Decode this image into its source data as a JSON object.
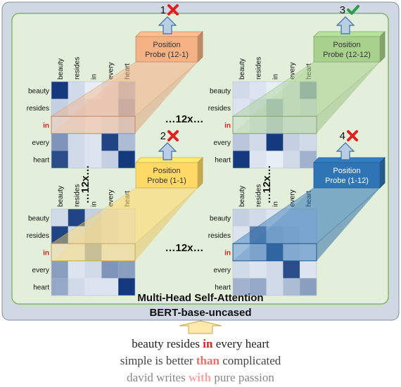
{
  "bert_label": "BERT-base-uncased",
  "mhsa_label": "Multi-Head Self-Attention",
  "tokens": [
    "beauty",
    "resides",
    "in",
    "every",
    "heart"
  ],
  "highlight_token": "in",
  "repeat_label": "…12x…",
  "colors": {
    "outer_box": "#d0d8e4",
    "inner_box": "#e3efda",
    "inner_border": "#70ad47",
    "highlight_text": "#e02020",
    "cross": "#e02020",
    "check": "#2e9c44",
    "arrow_fill": "#b9cde5",
    "arrow_stroke": "#3a6ea5",
    "input_arrow_fill": "#fde9a9",
    "input_arrow_stroke": "#c9a44a"
  },
  "panels": [
    {
      "id": "tl",
      "probe_title": "Position",
      "probe_sub": "Probe (12-1)",
      "probe_color": "#f4b183",
      "probe_text_color": "#333333",
      "marker_num": "1",
      "marker": "cross",
      "heatmap": [
        [
          0.95,
          0.15,
          0.05,
          0.1,
          0.3
        ],
        [
          0.2,
          0.15,
          0.1,
          0.1,
          0.4
        ],
        [
          0.1,
          0.1,
          0.05,
          0.1,
          0.2
        ],
        [
          0.5,
          0.15,
          0.1,
          0.9,
          0.3
        ],
        [
          0.85,
          0.15,
          0.1,
          0.2,
          0.95
        ]
      ]
    },
    {
      "id": "tr",
      "probe_title": "Position",
      "probe_sub": "Probe (12-12)",
      "probe_color": "#a9d18e",
      "probe_text_color": "#333333",
      "marker_num": "3",
      "marker": "check",
      "heatmap": [
        [
          0.15,
          0.1,
          0.05,
          0.1,
          0.5
        ],
        [
          0.1,
          0.15,
          0.35,
          0.1,
          0.15
        ],
        [
          0.05,
          0.1,
          0.25,
          0.1,
          0.1
        ],
        [
          0.25,
          0.15,
          0.95,
          0.2,
          0.15
        ],
        [
          0.95,
          0.1,
          0.05,
          0.15,
          0.35
        ]
      ]
    },
    {
      "id": "bl",
      "probe_title": "Position",
      "probe_sub": "Probe (1-1)",
      "probe_color": "#ffd966",
      "probe_text_color": "#333333",
      "marker_num": "2",
      "marker": "cross",
      "heatmap": [
        [
          0.15,
          0.9,
          0.2,
          0.15,
          0.1
        ],
        [
          0.9,
          0.15,
          0.2,
          0.15,
          0.1
        ],
        [
          0.1,
          0.1,
          0.4,
          0.1,
          0.1
        ],
        [
          0.45,
          0.1,
          0.15,
          0.5,
          0.45
        ],
        [
          0.4,
          0.15,
          0.1,
          0.1,
          0.95
        ]
      ]
    },
    {
      "id": "br",
      "probe_title": "Position",
      "probe_sub": "Probe (1-12)",
      "probe_color": "#2e75b6",
      "probe_text_color": "#ffffff",
      "marker_num": "4",
      "marker": "cross",
      "heatmap": [
        [
          0.2,
          0.15,
          0.1,
          0.1,
          0.1
        ],
        [
          0.1,
          0.6,
          0.2,
          0.15,
          0.1
        ],
        [
          0.1,
          0.2,
          0.8,
          0.15,
          0.1
        ],
        [
          0.15,
          0.1,
          0.15,
          0.85,
          0.1
        ],
        [
          0.35,
          0.4,
          0.15,
          0.3,
          0.45
        ]
      ]
    }
  ],
  "examples": [
    {
      "before": "beauty resides ",
      "target": "in",
      "after": " every heart",
      "color": "#222222",
      "target_color": "#e02020"
    },
    {
      "before": "simple is better ",
      "target": "than",
      "after": " complicated",
      "color": "#444444",
      "target_color": "#e8706a"
    },
    {
      "before": "david writes ",
      "target": "with",
      "after": " pure passion",
      "color": "#888888",
      "target_color": "#f0a8a8"
    }
  ]
}
